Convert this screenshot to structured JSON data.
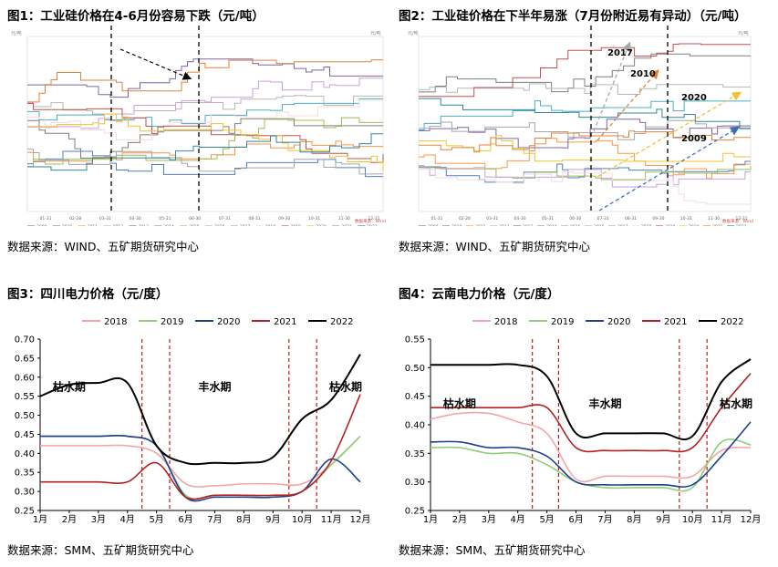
{
  "figures": [
    {
      "title": "图1：工业硅价格在4-6月份容易下跌（元/吨）",
      "source": "数据来源：WIND、五矿期货研究中心",
      "unit_label": "元/吨",
      "x_ticks": [
        "01-31",
        "02-28",
        "03-31",
        "04-30",
        "05-31",
        "06-30",
        "07-31",
        "08-31",
        "09-30",
        "10-31",
        "11-30",
        "12-31"
      ],
      "legend": [
        "2009",
        "2010",
        "2011",
        "2012",
        "2013",
        "2014",
        "2015",
        "2016",
        "2017",
        "2018",
        "2019",
        "2020",
        "2021",
        "2022"
      ],
      "source_mark": "数据来源：Wind"
    },
    {
      "title": "图2：工业硅价格在下半年易涨（7月份附近易有异动）（元/吨）",
      "source": "数据来源：WIND、五矿期货研究中心",
      "unit_label": "元/吨",
      "x_ticks": [
        "01-31",
        "02-28",
        "03-31",
        "04-30",
        "05-31",
        "06-30",
        "07-31",
        "08-31",
        "09-30",
        "10-31",
        "11-30",
        "12-31"
      ],
      "legend": [
        "2009",
        "2010",
        "2011",
        "2012",
        "2013",
        "2014",
        "2015",
        "2016",
        "2017",
        "2018",
        "2019",
        "2020",
        "2021",
        "2022"
      ],
      "source_mark": "数据来源：Wind",
      "annotations": [
        "2017",
        "2010",
        "2020",
        "2009"
      ]
    }
  ],
  "chart_data": [
    {
      "type": "line",
      "title": "图3：四川电力价格（元/度）",
      "source": "数据来源：SMM、五矿期货研究中心",
      "categories": [
        "1月",
        "2月",
        "3月",
        "4月",
        "5月",
        "6月",
        "7月",
        "8月",
        "9月",
        "10月",
        "11月",
        "12月"
      ],
      "ylim": [
        0.25,
        0.7
      ],
      "yticks": [
        "0.25",
        "0.30",
        "0.35",
        "0.40",
        "0.45",
        "0.50",
        "0.55",
        "0.60",
        "0.65",
        "0.70"
      ],
      "series": [
        {
          "name": "2018",
          "color": "#f4a6a6",
          "values": [
            0.42,
            0.42,
            0.42,
            0.42,
            0.4,
            0.32,
            0.315,
            0.32,
            0.32,
            0.32,
            0.37,
            0.445
          ]
        },
        {
          "name": "2019",
          "color": "#8fcf7a",
          "values": [
            0.445,
            0.445,
            0.445,
            0.445,
            0.42,
            0.29,
            0.29,
            0.29,
            0.29,
            0.3,
            0.37,
            0.445
          ]
        },
        {
          "name": "2020",
          "color": "#1f3f8c",
          "values": [
            0.445,
            0.445,
            0.445,
            0.445,
            0.42,
            0.285,
            0.285,
            0.285,
            0.285,
            0.3,
            0.385,
            0.325
          ]
        },
        {
          "name": "2021",
          "color": "#b22222",
          "values": [
            0.325,
            0.325,
            0.325,
            0.325,
            0.375,
            0.285,
            0.29,
            0.29,
            0.29,
            0.3,
            0.38,
            0.555
          ]
        },
        {
          "name": "2022",
          "color": "#000000",
          "values": [
            0.55,
            0.58,
            0.585,
            0.585,
            0.42,
            0.375,
            0.375,
            0.375,
            0.39,
            0.49,
            0.54,
            0.66
          ]
        }
      ],
      "vlines": [
        4.5,
        5.45,
        9.55,
        10.5
      ],
      "zones": [
        {
          "label": "枯水期",
          "at": 2.0,
          "y": 0.565
        },
        {
          "label": "丰水期",
          "at": 7.0,
          "y": 0.565
        },
        {
          "label": "枯水期",
          "at": 11.5,
          "y": 0.565
        }
      ]
    },
    {
      "type": "line",
      "title": "图4：云南电力价格（元/度）",
      "source": "数据来源：SMM、五矿期货研究中心",
      "categories": [
        "1月",
        "2月",
        "3月",
        "4月",
        "5月",
        "6月",
        "7月",
        "8月",
        "9月",
        "10月",
        "11月",
        "12月"
      ],
      "ylim": [
        0.25,
        0.55
      ],
      "yticks": [
        "0.25",
        "0.30",
        "0.35",
        "0.40",
        "0.45",
        "0.50",
        "0.55"
      ],
      "series": [
        {
          "name": "2018",
          "color": "#f4a6a6",
          "values": [
            0.41,
            0.42,
            0.42,
            0.405,
            0.385,
            0.305,
            0.31,
            0.31,
            0.31,
            0.31,
            0.355,
            0.36
          ]
        },
        {
          "name": "2019",
          "color": "#8fcf7a",
          "values": [
            0.36,
            0.36,
            0.35,
            0.35,
            0.33,
            0.3,
            0.29,
            0.29,
            0.29,
            0.29,
            0.37,
            0.365
          ]
        },
        {
          "name": "2020",
          "color": "#1f3f8c",
          "values": [
            0.37,
            0.37,
            0.36,
            0.36,
            0.345,
            0.3,
            0.295,
            0.295,
            0.295,
            0.295,
            0.345,
            0.405
          ]
        },
        {
          "name": "2021",
          "color": "#b22222",
          "values": [
            0.43,
            0.43,
            0.43,
            0.43,
            0.43,
            0.36,
            0.355,
            0.355,
            0.355,
            0.36,
            0.43,
            0.49
          ]
        },
        {
          "name": "2022",
          "color": "#000000",
          "values": [
            0.505,
            0.505,
            0.505,
            0.505,
            0.485,
            0.385,
            0.385,
            0.385,
            0.385,
            0.38,
            0.475,
            0.515
          ]
        }
      ],
      "vlines": [
        4.5,
        5.4,
        9.55,
        10.5
      ],
      "zones": [
        {
          "label": "枯水期",
          "at": 2.0,
          "y": 0.43
        },
        {
          "label": "丰水期",
          "at": 7.0,
          "y": 0.43
        },
        {
          "label": "枯水期",
          "at": 11.5,
          "y": 0.43
        }
      ]
    }
  ]
}
